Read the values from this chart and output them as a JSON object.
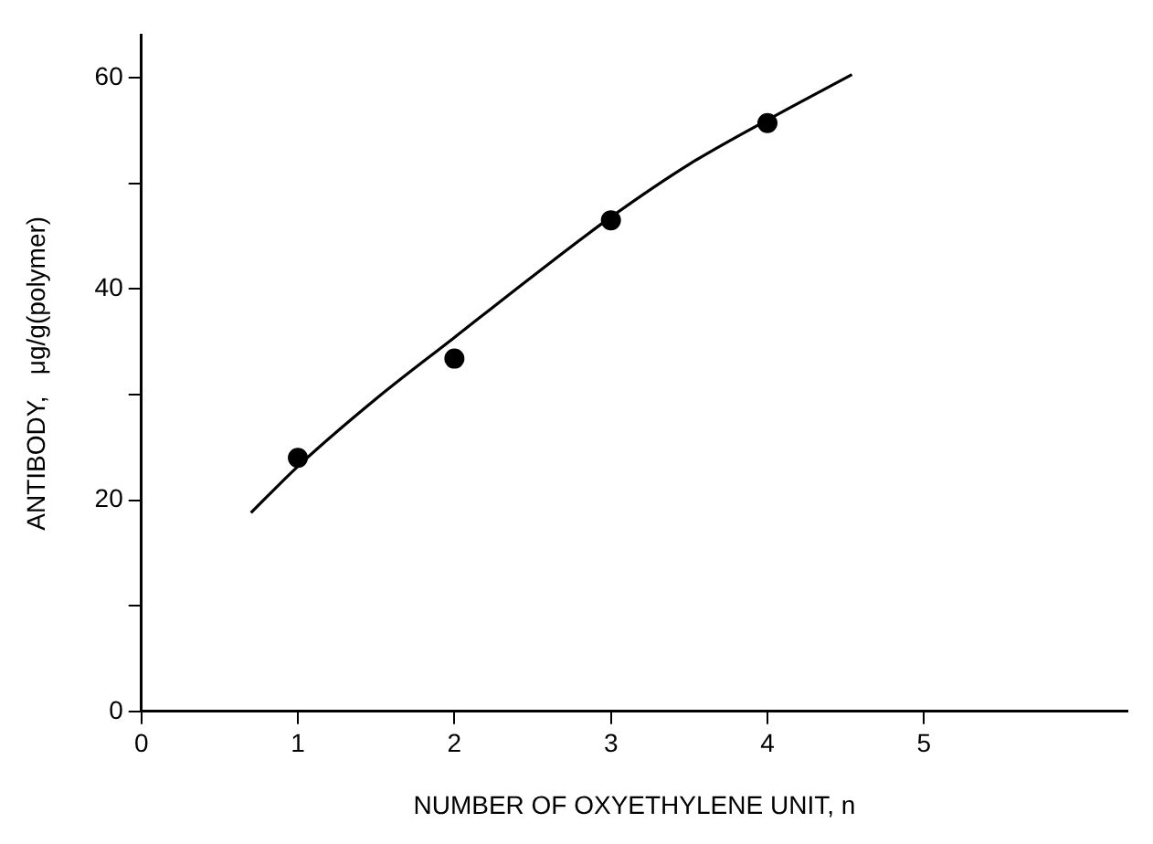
{
  "chart_data": {
    "type": "scatter",
    "xlabel": "NUMBER OF OXYETHYLENE UNIT, n",
    "ylabel": "ANTIBODY,   μg/g(polymer)",
    "xlim": [
      0,
      6.3
    ],
    "ylim": [
      0,
      64
    ],
    "xticks": [
      0,
      1,
      2,
      3,
      4,
      5
    ],
    "yticks": [
      0,
      {
        "value": 10,
        "label": null
      },
      20,
      {
        "value": 30,
        "label": null
      },
      40,
      {
        "value": 50,
        "label": null
      },
      60
    ],
    "grid": false,
    "legend": false,
    "series": [
      {
        "color": "#000000",
        "marker": "circle",
        "x": [
          1,
          2,
          3,
          4
        ],
        "values": [
          24.0,
          33.4,
          46.5,
          55.7
        ]
      },
      {
        "type": "line",
        "color": "#000000",
        "marker": "none",
        "line_style": "solid",
        "x": [
          0.7,
          1,
          1.5,
          2,
          2.5,
          3,
          3.5,
          4,
          4.54
        ],
        "values": [
          18.8,
          23.2,
          29.6,
          35.4,
          41.2,
          46.8,
          51.8,
          56.0,
          60.3
        ]
      }
    ]
  }
}
